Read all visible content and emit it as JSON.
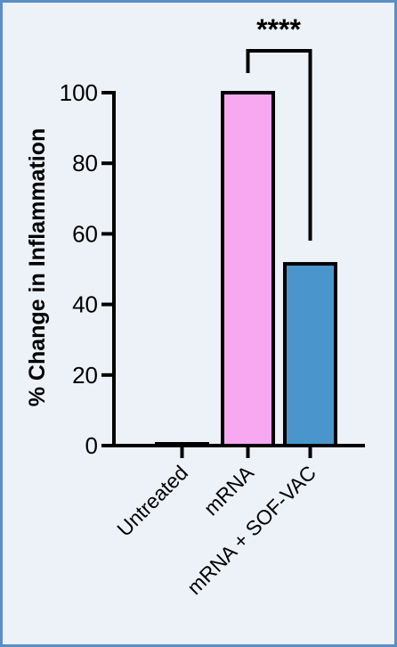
{
  "chart_data": {
    "type": "bar",
    "categories": [
      "Untreated",
      "mRNA",
      "mRNA + SOF-VAC"
    ],
    "values": [
      0.5,
      100,
      51.5
    ],
    "ylabel": "% Change in Inflammation",
    "xlabel": "",
    "ylim": [
      0,
      100
    ],
    "yticks": [
      "0",
      "20",
      "40",
      "60",
      "80",
      "100"
    ],
    "bar_colors": [
      "#ffffff",
      "#f7a8f0",
      "#4a96cc"
    ],
    "grid": false,
    "significance": {
      "from": "mRNA",
      "to": "mRNA + SOF-VAC",
      "label": "****"
    }
  },
  "colors": {
    "frame_border": "#5b8fc4",
    "background": "#edf1f8"
  }
}
